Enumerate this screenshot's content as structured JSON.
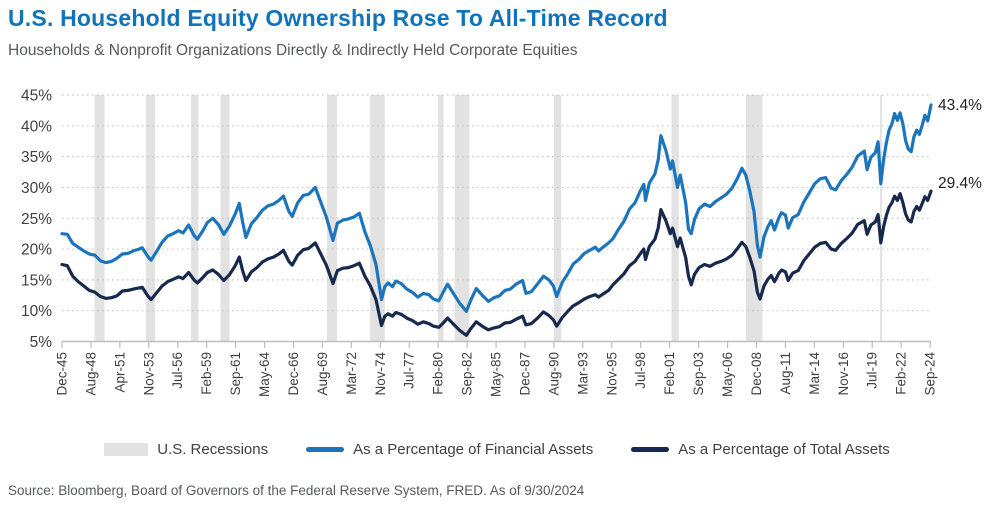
{
  "header": {
    "title": "U.S. Household Equity Ownership Rose To All-Time Record",
    "subtitle": "Households & Nonprofit Organizations Directly & Indirectly Held Corporate Equities"
  },
  "source": {
    "text": "Source: Bloomberg, Board of Governors of the Federal Reserve System, FRED. As of 9/30/2024"
  },
  "colors": {
    "title": "#1173B9",
    "subtitle": "#58595B",
    "axis_text": "#414042",
    "axis_line": "#BDBDBD",
    "gridline": "#C9C9C9",
    "recession_band": "#E2E2E2",
    "financial_assets_line": "#1C75BC",
    "total_assets_line": "#17294C",
    "end_label_text": "#231F20"
  },
  "legend": [
    {
      "label": "U.S. Recessions",
      "swatch": "box",
      "color": "#E2E2E2"
    },
    {
      "label": "As a Percentage of Financial Assets",
      "swatch": "line",
      "color": "#1C75BC"
    },
    {
      "label": "As a Percentage of Total Assets",
      "swatch": "line",
      "color": "#17294C"
    }
  ],
  "chart_data": {
    "type": "line",
    "title": "U.S. Household Equity Ownership Rose To All-Time Record",
    "xlabel": "",
    "ylabel": "",
    "x_domain": [
      1945.92,
      2024.75
    ],
    "ylim": [
      5,
      45
    ],
    "grid": "horizontal-dotted",
    "legend_position": "bottom",
    "y_ticks": [
      45,
      40,
      35,
      30,
      25,
      20,
      15,
      10,
      5
    ],
    "y_tick_labels": [
      "45%",
      "40%",
      "35%",
      "30%",
      "25%",
      "20%",
      "15%",
      "10%",
      "5%"
    ],
    "x_tick_interval_years": 2.625,
    "x_tick_labels": [
      "Dec-45",
      "Aug-48",
      "Apr-51",
      "Nov-53",
      "Jul-56",
      "Feb-59",
      "Sep-61",
      "May-64",
      "Dec-66",
      "Aug-69",
      "Mar-72",
      "Nov-74",
      "Jul-77",
      "Feb-80",
      "Sep-82",
      "May-85",
      "Dec-87",
      "Aug-90",
      "Mar-93",
      "Nov-95",
      "Jul-98",
      "Feb-01",
      "Sep-03",
      "May-06",
      "Dec-08",
      "Aug-11",
      "Mar-14",
      "Nov-16",
      "Jul-19",
      "Feb-22",
      "Sep-24"
    ],
    "recessions": [
      [
        1948.87,
        1949.79
      ],
      [
        1953.54,
        1954.37
      ],
      [
        1957.62,
        1958.29
      ],
      [
        1960.29,
        1961.12
      ],
      [
        1969.96,
        1970.87
      ],
      [
        1973.87,
        1975.21
      ],
      [
        1980.04,
        1980.54
      ],
      [
        1981.54,
        1982.87
      ],
      [
        1990.54,
        1991.21
      ],
      [
        2001.21,
        2001.87
      ],
      [
        2007.96,
        2009.46
      ],
      [
        2020.12,
        2020.29
      ]
    ],
    "series": [
      {
        "name": "As a Percentage of Financial Assets",
        "color": "#1C75BC",
        "last_value": 43.4
      },
      {
        "name": "As a Percentage of Total Assets",
        "color": "#17294C",
        "last_value": 29.4
      }
    ],
    "end_labels": [
      {
        "text": "43.4%",
        "value": 43.4,
        "dy": 0
      },
      {
        "text": "29.4%",
        "value": 29.4,
        "dy": -8
      }
    ],
    "points_format": [
      "year",
      "pct_of_financial_assets",
      "pct_of_total_assets"
    ],
    "points": [
      [
        1945.92,
        22.5,
        17.5
      ],
      [
        1946.4,
        22.4,
        17.3
      ],
      [
        1946.9,
        20.9,
        15.6
      ],
      [
        1947.4,
        20.3,
        14.7
      ],
      [
        1947.9,
        19.7,
        14.0
      ],
      [
        1948.4,
        19.2,
        13.3
      ],
      [
        1948.9,
        19.0,
        13.0
      ],
      [
        1949.4,
        18.1,
        12.3
      ],
      [
        1949.9,
        17.8,
        12.0
      ],
      [
        1950.4,
        18.0,
        12.1
      ],
      [
        1950.9,
        18.5,
        12.4
      ],
      [
        1951.4,
        19.2,
        13.2
      ],
      [
        1951.9,
        19.3,
        13.3
      ],
      [
        1952.4,
        19.7,
        13.5
      ],
      [
        1952.9,
        20.0,
        13.7
      ],
      [
        1953.2,
        20.2,
        13.8
      ],
      [
        1953.7,
        18.8,
        12.4
      ],
      [
        1954.0,
        18.2,
        11.8
      ],
      [
        1954.5,
        19.6,
        12.9
      ],
      [
        1955.0,
        21.1,
        14.0
      ],
      [
        1955.5,
        22.1,
        14.7
      ],
      [
        1956.0,
        22.5,
        15.1
      ],
      [
        1956.5,
        23.0,
        15.5
      ],
      [
        1956.9,
        22.6,
        15.2
      ],
      [
        1957.4,
        23.9,
        16.2
      ],
      [
        1957.9,
        22.2,
        15.0
      ],
      [
        1958.2,
        21.6,
        14.5
      ],
      [
        1958.7,
        23.0,
        15.4
      ],
      [
        1959.1,
        24.3,
        16.2
      ],
      [
        1959.6,
        25.0,
        16.6
      ],
      [
        1960.1,
        24.0,
        15.9
      ],
      [
        1960.6,
        22.4,
        14.9
      ],
      [
        1961.1,
        23.7,
        15.8
      ],
      [
        1961.6,
        25.6,
        17.2
      ],
      [
        1962.0,
        27.4,
        18.7
      ],
      [
        1962.3,
        24.4,
        16.5
      ],
      [
        1962.6,
        21.9,
        14.9
      ],
      [
        1963.1,
        24.1,
        16.3
      ],
      [
        1963.6,
        25.1,
        17.0
      ],
      [
        1964.1,
        26.3,
        17.9
      ],
      [
        1964.6,
        27.0,
        18.4
      ],
      [
        1965.1,
        27.3,
        18.7
      ],
      [
        1965.6,
        27.9,
        19.2
      ],
      [
        1966.0,
        28.6,
        19.8
      ],
      [
        1966.5,
        26.1,
        18.0
      ],
      [
        1966.8,
        25.3,
        17.4
      ],
      [
        1967.3,
        27.5,
        19.0
      ],
      [
        1967.8,
        28.7,
        19.9
      ],
      [
        1968.3,
        28.9,
        20.1
      ],
      [
        1968.9,
        30.0,
        21.0
      ],
      [
        1969.4,
        27.6,
        19.2
      ],
      [
        1969.9,
        25.2,
        17.4
      ],
      [
        1970.5,
        21.4,
        14.4
      ],
      [
        1970.9,
        24.2,
        16.5
      ],
      [
        1971.4,
        24.7,
        16.9
      ],
      [
        1971.9,
        24.9,
        17.0
      ],
      [
        1972.4,
        25.2,
        17.3
      ],
      [
        1972.9,
        25.8,
        17.7
      ],
      [
        1973.4,
        22.8,
        15.6
      ],
      [
        1973.9,
        20.5,
        14.0
      ],
      [
        1974.4,
        17.5,
        11.8
      ],
      [
        1974.9,
        11.8,
        7.6
      ],
      [
        1975.2,
        13.9,
        9.1
      ],
      [
        1975.5,
        14.5,
        9.5
      ],
      [
        1975.9,
        13.9,
        9.1
      ],
      [
        1976.2,
        14.8,
        9.7
      ],
      [
        1976.7,
        14.4,
        9.4
      ],
      [
        1977.2,
        13.5,
        8.8
      ],
      [
        1977.7,
        13.0,
        8.4
      ],
      [
        1978.2,
        12.2,
        7.8
      ],
      [
        1978.7,
        12.8,
        8.2
      ],
      [
        1979.2,
        12.6,
        7.9
      ],
      [
        1979.6,
        11.9,
        7.5
      ],
      [
        1980.1,
        11.6,
        7.3
      ],
      [
        1980.5,
        13.0,
        8.0
      ],
      [
        1980.9,
        14.3,
        8.8
      ],
      [
        1981.5,
        12.6,
        7.7
      ],
      [
        1982.0,
        11.2,
        6.8
      ],
      [
        1982.6,
        9.9,
        6.0
      ],
      [
        1983.0,
        11.7,
        7.1
      ],
      [
        1983.5,
        13.6,
        8.2
      ],
      [
        1984.1,
        12.4,
        7.4
      ],
      [
        1984.6,
        11.5,
        6.9
      ],
      [
        1985.1,
        12.1,
        7.2
      ],
      [
        1985.6,
        12.4,
        7.4
      ],
      [
        1986.1,
        13.3,
        8.0
      ],
      [
        1986.6,
        13.5,
        8.1
      ],
      [
        1987.1,
        14.3,
        8.6
      ],
      [
        1987.7,
        14.9,
        9.1
      ],
      [
        1988.0,
        12.8,
        7.7
      ],
      [
        1988.5,
        13.1,
        7.9
      ],
      [
        1989.0,
        14.2,
        8.7
      ],
      [
        1989.6,
        15.6,
        9.8
      ],
      [
        1990.1,
        15.0,
        9.2
      ],
      [
        1990.5,
        14.0,
        8.5
      ],
      [
        1990.8,
        12.3,
        7.5
      ],
      [
        1991.3,
        14.6,
        8.9
      ],
      [
        1991.8,
        16.0,
        9.9
      ],
      [
        1992.3,
        17.6,
        10.8
      ],
      [
        1992.8,
        18.3,
        11.3
      ],
      [
        1993.3,
        19.3,
        11.9
      ],
      [
        1993.8,
        19.8,
        12.3
      ],
      [
        1994.3,
        20.3,
        12.6
      ],
      [
        1994.6,
        19.7,
        12.2
      ],
      [
        1995.0,
        20.3,
        12.7
      ],
      [
        1995.5,
        21.0,
        13.3
      ],
      [
        1995.9,
        21.7,
        14.2
      ],
      [
        1996.4,
        23.2,
        15.1
      ],
      [
        1996.9,
        24.5,
        16.0
      ],
      [
        1997.4,
        26.5,
        17.3
      ],
      [
        1997.9,
        27.5,
        18.0
      ],
      [
        1998.4,
        29.5,
        19.3
      ],
      [
        1998.7,
        30.5,
        20.0
      ],
      [
        1998.85,
        27.9,
        18.3
      ],
      [
        1999.2,
        30.7,
        20.4
      ],
      [
        1999.7,
        32.2,
        21.6
      ],
      [
        2000.0,
        34.5,
        23.4
      ],
      [
        2000.25,
        38.4,
        26.4
      ],
      [
        2000.7,
        36.0,
        24.6
      ],
      [
        2001.1,
        33.0,
        22.5
      ],
      [
        2001.3,
        34.3,
        23.4
      ],
      [
        2001.75,
        30.0,
        20.4
      ],
      [
        2002.0,
        32.0,
        21.8
      ],
      [
        2002.5,
        27.5,
        18.6
      ],
      [
        2002.75,
        23.2,
        15.6
      ],
      [
        2003.0,
        22.5,
        14.2
      ],
      [
        2003.3,
        24.8,
        15.9
      ],
      [
        2003.7,
        26.5,
        17.0
      ],
      [
        2004.2,
        27.3,
        17.5
      ],
      [
        2004.7,
        26.9,
        17.2
      ],
      [
        2005.2,
        27.7,
        17.7
      ],
      [
        2005.7,
        28.3,
        18.0
      ],
      [
        2006.2,
        28.9,
        18.4
      ],
      [
        2006.7,
        29.9,
        19.0
      ],
      [
        2007.2,
        31.5,
        20.1
      ],
      [
        2007.6,
        33.1,
        21.1
      ],
      [
        2007.95,
        32.0,
        20.4
      ],
      [
        2008.3,
        29.5,
        18.7
      ],
      [
        2008.7,
        26.0,
        16.4
      ],
      [
        2009.0,
        20.6,
        13.0
      ],
      [
        2009.25,
        18.7,
        11.9
      ],
      [
        2009.6,
        22.0,
        14.0
      ],
      [
        2009.95,
        23.6,
        15.1
      ],
      [
        2010.25,
        24.6,
        15.7
      ],
      [
        2010.55,
        23.1,
        14.7
      ],
      [
        2010.95,
        25.1,
        16.1
      ],
      [
        2011.2,
        25.9,
        16.6
      ],
      [
        2011.55,
        25.5,
        16.3
      ],
      [
        2011.8,
        23.4,
        14.9
      ],
      [
        2012.2,
        25.1,
        16.1
      ],
      [
        2012.7,
        25.6,
        16.5
      ],
      [
        2013.2,
        27.6,
        18.1
      ],
      [
        2013.7,
        29.1,
        19.2
      ],
      [
        2014.2,
        30.6,
        20.3
      ],
      [
        2014.7,
        31.4,
        20.9
      ],
      [
        2015.2,
        31.6,
        21.1
      ],
      [
        2015.7,
        29.9,
        20.0
      ],
      [
        2016.1,
        29.6,
        19.8
      ],
      [
        2016.6,
        31.1,
        20.9
      ],
      [
        2017.1,
        32.1,
        21.7
      ],
      [
        2017.6,
        33.3,
        22.6
      ],
      [
        2018.1,
        35.1,
        24.0
      ],
      [
        2018.7,
        35.9,
        24.6
      ],
      [
        2018.95,
        32.9,
        22.4
      ],
      [
        2019.3,
        34.9,
        23.9
      ],
      [
        2019.7,
        35.6,
        24.4
      ],
      [
        2019.95,
        37.4,
        25.6
      ],
      [
        2020.2,
        30.6,
        21.0
      ],
      [
        2020.45,
        34.5,
        23.6
      ],
      [
        2020.7,
        37.3,
        25.5
      ],
      [
        2020.95,
        39.3,
        26.8
      ],
      [
        2021.2,
        40.3,
        27.5
      ],
      [
        2021.45,
        42.0,
        28.6
      ],
      [
        2021.7,
        40.9,
        27.9
      ],
      [
        2021.95,
        42.1,
        29.0
      ],
      [
        2022.2,
        40.3,
        27.5
      ],
      [
        2022.45,
        37.6,
        25.7
      ],
      [
        2022.7,
        36.2,
        24.7
      ],
      [
        2022.95,
        35.8,
        24.4
      ],
      [
        2023.2,
        38.2,
        26.1
      ],
      [
        2023.45,
        39.3,
        26.9
      ],
      [
        2023.7,
        38.6,
        26.3
      ],
      [
        2023.95,
        40.1,
        27.4
      ],
      [
        2024.2,
        41.7,
        28.5
      ],
      [
        2024.45,
        40.8,
        27.9
      ],
      [
        2024.75,
        43.4,
        29.4
      ]
    ]
  }
}
